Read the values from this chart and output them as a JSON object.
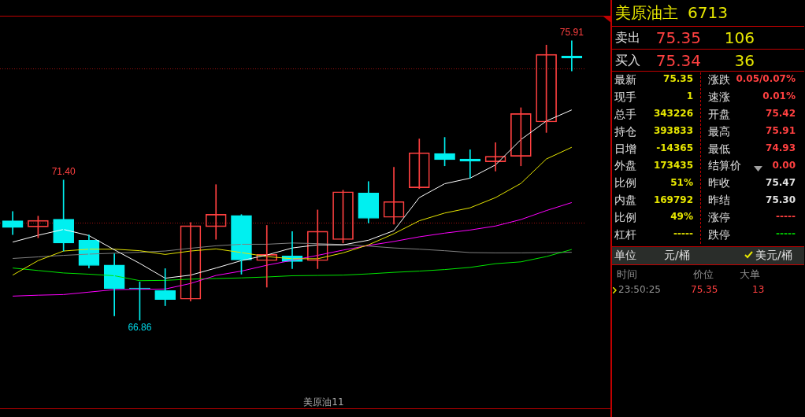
{
  "chart_data": [
    {
      "type": "candlestick",
      "xlabel": "美原油11",
      "categories": [
        null,
        null,
        null,
        null,
        null,
        null,
        null,
        null,
        null,
        null,
        null,
        null,
        null,
        null,
        null,
        null,
        null,
        null,
        null,
        null,
        null,
        null,
        null
      ],
      "ohlc": [
        [
          70.08,
          70.38,
          69.63,
          69.86
        ],
        [
          69.88,
          70.23,
          69.53,
          70.09
        ],
        [
          70.13,
          71.4,
          69.1,
          69.36
        ],
        [
          69.45,
          69.62,
          68.55,
          68.63
        ],
        [
          68.65,
          69.01,
          67.0,
          67.88
        ],
        [
          67.9,
          68.1,
          66.86,
          67.88
        ],
        [
          67.82,
          68.53,
          67.33,
          67.53
        ],
        [
          67.54,
          70.02,
          67.48,
          69.92
        ],
        [
          69.89,
          71.25,
          69.48,
          70.29
        ],
        [
          70.25,
          70.28,
          68.35,
          68.81
        ],
        [
          68.79,
          69.93,
          67.93,
          68.99
        ],
        [
          68.94,
          69.73,
          68.53,
          68.76
        ],
        [
          68.79,
          70.43,
          68.53,
          69.74
        ],
        [
          69.47,
          71.07,
          69.36,
          71.02
        ],
        [
          70.98,
          71.35,
          70.01,
          70.16
        ],
        [
          70.19,
          71.81,
          69.97,
          70.7
        ],
        [
          71.15,
          72.73,
          71.12,
          72.28
        ],
        [
          72.26,
          72.78,
          71.86,
          72.06
        ],
        [
          72.08,
          72.38,
          71.46,
          72.01
        ],
        [
          71.99,
          72.61,
          71.69,
          72.17
        ],
        [
          72.17,
          73.74,
          71.86,
          73.55
        ],
        [
          73.28,
          75.77,
          72.94,
          75.47
        ],
        [
          75.42,
          75.91,
          74.93,
          75.35
        ]
      ],
      "colors": [
        "#00f0f0",
        "#ff4040",
        "#00f0f0",
        "#00f0f0",
        "#00f0f0",
        "#00f0f0",
        "#00f0f0",
        "#ff4040",
        "#ff4040",
        "#00f0f0",
        "#ff4040",
        "#00f0f0",
        "#ff4040",
        "#ff4040",
        "#00f0f0",
        "#ff4040",
        "#ff4040",
        "#00f0f0",
        "#00f0f0",
        "#ff4040",
        "#ff4040",
        "#ff4040",
        "#00f0f0"
      ],
      "series": [
        {
          "type": "line",
          "color": "#ffffff",
          "values": [
            69.39,
            69.61,
            69.8,
            69.6,
            69.14,
            68.7,
            68.22,
            68.32,
            68.55,
            68.79,
            68.97,
            69.2,
            69.3,
            69.3,
            69.45,
            69.76,
            70.83,
            71.28,
            71.46,
            71.89,
            72.71,
            73.31,
            73.67
          ]
        },
        {
          "type": "line",
          "color": "#e6e600",
          "values": [
            68.32,
            68.79,
            69.1,
            69.16,
            69.16,
            69.11,
            68.99,
            69.1,
            69.17,
            69.05,
            68.92,
            68.85,
            68.85,
            69.04,
            69.3,
            69.66,
            70.08,
            70.33,
            70.5,
            70.83,
            71.29,
            72.08,
            72.46
          ]
        },
        {
          "type": "line",
          "color": "#ff00ff",
          "values": [
            67.64,
            67.67,
            67.69,
            67.77,
            67.85,
            67.86,
            67.87,
            68.05,
            68.31,
            68.45,
            68.64,
            68.8,
            68.96,
            69.13,
            69.28,
            69.41,
            69.56,
            69.68,
            69.78,
            69.91,
            70.12,
            70.41,
            70.67
          ]
        },
        {
          "type": "line",
          "color": "#00e600",
          "values": [
            68.55,
            68.47,
            68.39,
            68.35,
            68.3,
            68.14,
            68.15,
            68.19,
            68.21,
            68.23,
            68.26,
            68.3,
            68.31,
            68.32,
            68.36,
            68.41,
            68.45,
            68.5,
            68.57,
            68.69,
            68.75,
            68.92,
            69.15
          ]
        },
        {
          "type": "line",
          "color": "#808080",
          "values": [
            68.86,
            68.91,
            68.96,
            69.0,
            69.03,
            69.06,
            69.1,
            69.19,
            69.27,
            69.32,
            69.32,
            69.36,
            69.34,
            69.31,
            69.26,
            69.2,
            69.16,
            69.11,
            69.05,
            69.04,
            69.04,
            69.05,
            69.06
          ]
        }
      ],
      "ylim": [
        63.98,
        76.72
      ],
      "yticks": [
        {
          "value": 70,
          "label": null
        },
        {
          "value": 75,
          "label": null
        }
      ],
      "grid": "y",
      "tick_labels": false,
      "annotations": [
        {
          "text": "71.40",
          "y": 71.4
        },
        {
          "text": "66.86",
          "y": 66.86
        },
        {
          "text": "75.91",
          "y": 75.91
        }
      ]
    },
    {
      "type": "other",
      "title": "美原油主",
      "subtitle": "6713",
      "annotations": [
        "卖出",
        "75.35",
        "106",
        "买入",
        "75.34",
        "36",
        "最新",
        "75.35",
        "涨跌",
        "0.05/0.07%",
        "现手",
        "1",
        "速涨",
        "0.01%",
        "总手",
        "343226",
        "开盘",
        "75.42",
        "持仓",
        "393833",
        "最高",
        "75.91",
        "日增",
        "-14365",
        "最低",
        "74.93",
        "外盘",
        "173435",
        "结算价",
        "0.00",
        "比例",
        "51%",
        "昨收",
        "75.47",
        "内盘",
        "169792",
        "昨结",
        "75.30",
        "比例",
        "49%",
        "涨停",
        "-----",
        "杠杆",
        "-----",
        "跌停",
        "-----",
        "单位",
        "元/桶",
        "美元/桶",
        "时间",
        "价位",
        "大单",
        "23:50:25",
        "75.35",
        "13"
      ]
    }
  ]
}
